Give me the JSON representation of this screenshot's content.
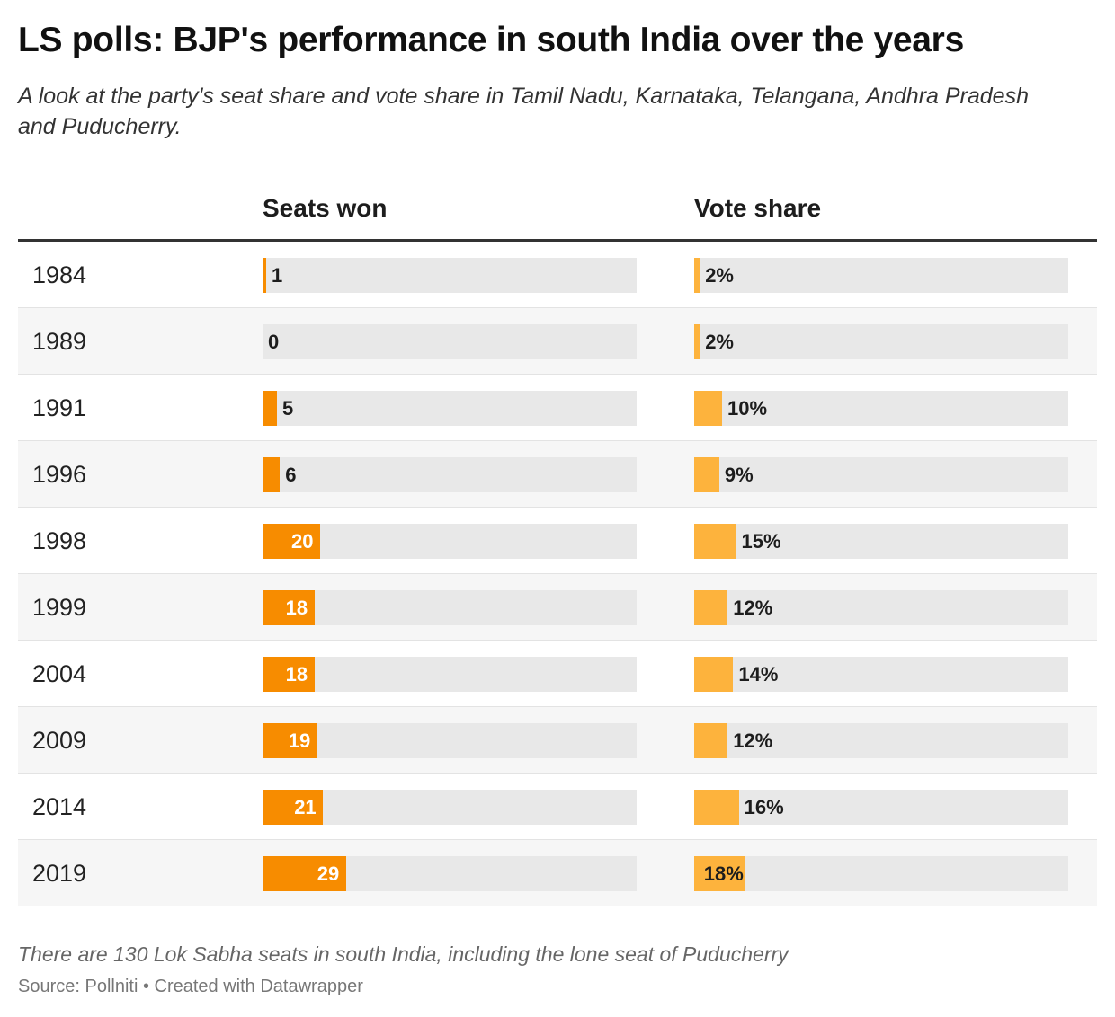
{
  "title": "LS polls: BJP's performance in south India over the years",
  "subtitle": "A look at the party's seat share and vote share in Tamil Nadu, Karnataka, Telangana, Andhra Pradesh and Puducherry.",
  "colors": {
    "seats_bar": "#f78c00",
    "votes_bar": "#fdb33d",
    "track": "#e8e8e8"
  },
  "chart_data": {
    "type": "bar",
    "columns": [
      "Seats won",
      "Vote share"
    ],
    "categories": [
      "1984",
      "1989",
      "1991",
      "1996",
      "1998",
      "1999",
      "2004",
      "2009",
      "2014",
      "2019"
    ],
    "series": [
      {
        "name": "Seats won",
        "values": [
          1,
          0,
          5,
          6,
          20,
          18,
          18,
          19,
          21,
          29
        ],
        "labels": [
          "1",
          "0",
          "5",
          "6",
          "20",
          "18",
          "18",
          "19",
          "21",
          "29"
        ],
        "max": 130
      },
      {
        "name": "Vote share",
        "values": [
          2,
          2,
          10,
          9,
          15,
          12,
          14,
          12,
          16,
          18
        ],
        "labels": [
          "2%",
          "2%",
          "10%",
          "9%",
          "15%",
          "12%",
          "14%",
          "12%",
          "16%",
          "18%"
        ],
        "max": 100
      }
    ]
  },
  "notes": "There are 130 Lok Sabha seats in south India, including the lone seat of Puducherry",
  "source": "Source: Pollniti • Created with Datawrapper"
}
